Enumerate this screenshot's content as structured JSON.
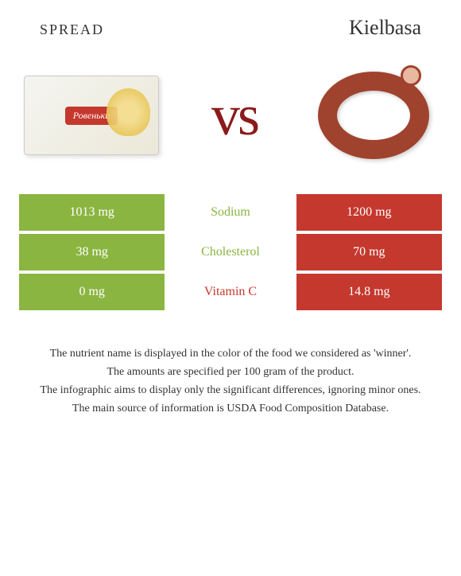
{
  "header": {
    "left_title": "spread",
    "right_title": "Kielbasa"
  },
  "vs_label": "vs",
  "spread_brand": "Ровеньки",
  "colors": {
    "spread": "#8bb541",
    "kielbasa": "#c4382e",
    "text": "#333333",
    "vs": "#8b1a1a"
  },
  "rows": [
    {
      "left_value": "1013 mg",
      "nutrient": "Sodium",
      "right_value": "1200 mg",
      "left_bg": "#8bb541",
      "middle_color": "#8bb541",
      "right_bg": "#c4382e"
    },
    {
      "left_value": "38 mg",
      "nutrient": "Cholesterol",
      "right_value": "70 mg",
      "left_bg": "#8bb541",
      "middle_color": "#8bb541",
      "right_bg": "#c4382e"
    },
    {
      "left_value": "0 mg",
      "nutrient": "Vitamin C",
      "right_value": "14.8 mg",
      "left_bg": "#8bb541",
      "middle_color": "#c4382e",
      "right_bg": "#c4382e"
    }
  ],
  "footer": {
    "line1": "The nutrient name is displayed in the color of the food we considered as 'winner'.",
    "line2": "The amounts are specified per 100 gram of the product.",
    "line3": "The infographic aims to display only the significant differences, ignoring minor ones.",
    "line4": "The main source of information is USDA Food Composition Database."
  }
}
